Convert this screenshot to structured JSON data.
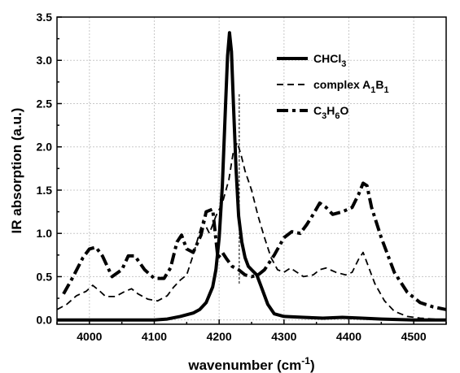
{
  "chart_data": {
    "type": "line",
    "xlabel": "wavenumber (cm",
    "xlabel_sup": "-1",
    "xlabel_end": ")",
    "ylabel": "IR absorption (a.u.)",
    "xlim": [
      3950,
      4550
    ],
    "ylim": [
      -0.05,
      3.5
    ],
    "xticks": [
      4000,
      4100,
      4200,
      4300,
      4400,
      4500
    ],
    "yticks": [
      0.0,
      0.5,
      1.0,
      1.5,
      2.0,
      2.5,
      3.0,
      3.5
    ],
    "ytick_labels": [
      "0.0",
      "0.5",
      "1.0",
      "1.5",
      "2.0",
      "2.5",
      "3.0",
      "3.5"
    ],
    "grid": true,
    "legend_position": "top-right",
    "vertical_marker_x": 4231,
    "vertical_marker_y": [
      0.42,
      2.62
    ],
    "series": [
      {
        "name": "CHCl",
        "name_sub": "3",
        "style": "solid",
        "x": [
          3950,
          4000,
          4050,
          4100,
          4120,
          4140,
          4160,
          4170,
          4180,
          4190,
          4195,
          4200,
          4205,
          4210,
          4213,
          4216,
          4219,
          4222,
          4226,
          4230,
          4235,
          4240,
          4245,
          4250,
          4258,
          4265,
          4275,
          4285,
          4300,
          4330,
          4360,
          4390,
          4420,
          4450,
          4500,
          4550
        ],
        "y": [
          0.0,
          0.0,
          0.0,
          0.0,
          0.01,
          0.04,
          0.08,
          0.12,
          0.2,
          0.38,
          0.58,
          0.95,
          1.55,
          2.5,
          3.05,
          3.32,
          3.1,
          2.5,
          1.75,
          1.2,
          0.9,
          0.72,
          0.62,
          0.58,
          0.52,
          0.38,
          0.18,
          0.07,
          0.04,
          0.03,
          0.02,
          0.03,
          0.02,
          0.01,
          0.0,
          0.0
        ]
      },
      {
        "name": "complex A",
        "name_sub1": "1",
        "name_mid": "B",
        "name_sub2": "1",
        "style": "dashed",
        "x": [
          3950,
          3965,
          3980,
          3995,
          4005,
          4015,
          4025,
          4040,
          4055,
          4065,
          4075,
          4090,
          4105,
          4120,
          4130,
          4140,
          4150,
          4160,
          4175,
          4185,
          4195,
          4205,
          4215,
          4222,
          4228,
          4234,
          4240,
          4250,
          4260,
          4270,
          4280,
          4290,
          4300,
          4310,
          4320,
          4330,
          4345,
          4355,
          4365,
          4380,
          4395,
          4405,
          4415,
          4422,
          4430,
          4440,
          4455,
          4470,
          4490,
          4510,
          4530,
          4550
        ],
        "y": [
          0.12,
          0.18,
          0.28,
          0.33,
          0.4,
          0.34,
          0.27,
          0.27,
          0.33,
          0.36,
          0.3,
          0.24,
          0.22,
          0.28,
          0.38,
          0.46,
          0.52,
          0.75,
          1.15,
          1.0,
          1.2,
          1.35,
          1.62,
          1.95,
          2.05,
          1.9,
          1.72,
          1.5,
          1.2,
          0.95,
          0.72,
          0.58,
          0.55,
          0.6,
          0.55,
          0.5,
          0.52,
          0.58,
          0.6,
          0.55,
          0.52,
          0.55,
          0.7,
          0.78,
          0.62,
          0.42,
          0.22,
          0.1,
          0.04,
          0.02,
          0.01,
          0.0
        ]
      },
      {
        "name": "C",
        "name_sub1": "3",
        "name_mid": "H",
        "name_sub2": "6",
        "name_end": "O",
        "style": "dashdot",
        "x": [
          3960,
          3975,
          3990,
          4000,
          4010,
          4020,
          4035,
          4050,
          4060,
          4070,
          4085,
          4100,
          4115,
          4125,
          4135,
          4142,
          4150,
          4160,
          4172,
          4180,
          4190,
          4198,
          4205,
          4212,
          4220,
          4230,
          4240,
          4250,
          4260,
          4270,
          4285,
          4300,
          4312,
          4325,
          4335,
          4345,
          4355,
          4365,
          4375,
          4390,
          4405,
          4415,
          4422,
          4428,
          4435,
          4450,
          4470,
          4490,
          4510,
          4530,
          4550
        ],
        "y": [
          0.3,
          0.5,
          0.72,
          0.82,
          0.84,
          0.74,
          0.5,
          0.58,
          0.74,
          0.74,
          0.58,
          0.48,
          0.48,
          0.6,
          0.9,
          0.98,
          0.82,
          0.78,
          0.98,
          1.25,
          1.28,
          0.72,
          0.78,
          0.7,
          0.62,
          0.58,
          0.52,
          0.5,
          0.52,
          0.58,
          0.75,
          0.95,
          1.02,
          1.0,
          1.1,
          1.22,
          1.35,
          1.3,
          1.22,
          1.25,
          1.3,
          1.45,
          1.58,
          1.55,
          1.3,
          0.95,
          0.55,
          0.32,
          0.2,
          0.15,
          0.12
        ]
      }
    ]
  },
  "colors": {
    "line": "#000000",
    "grid": "#c8c8c8",
    "background": "#ffffff"
  }
}
